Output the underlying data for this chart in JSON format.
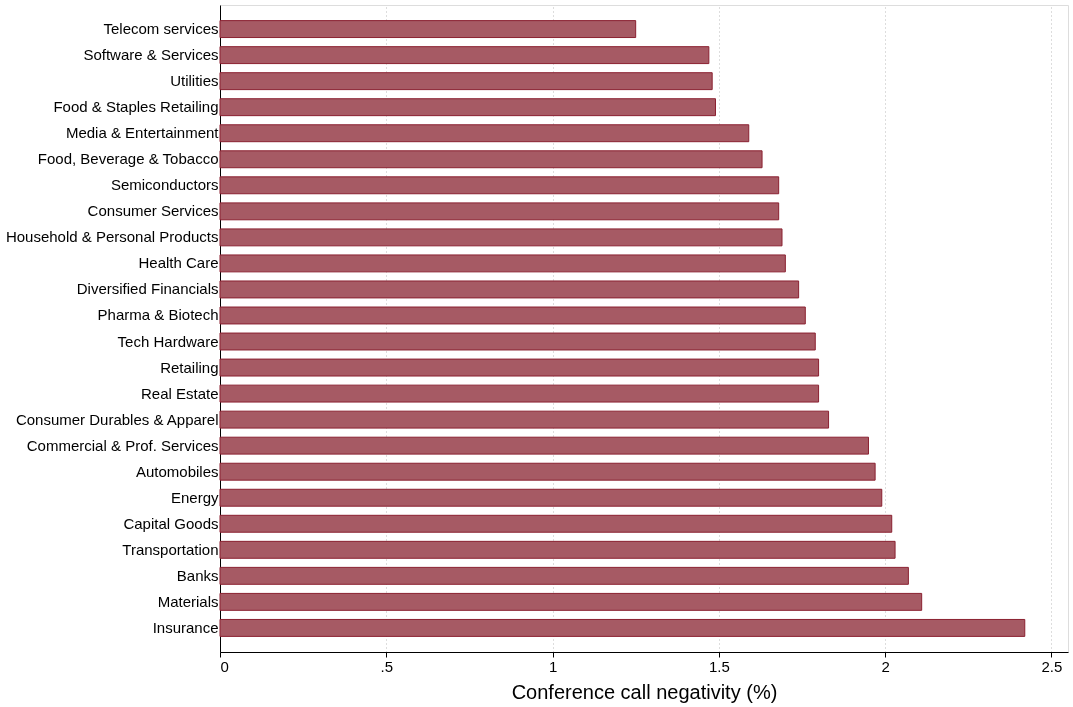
{
  "chart_data": {
    "type": "bar",
    "orientation": "horizontal",
    "xlabel": "Conference call negativity (%)",
    "categories": [
      "Telecom services",
      "Software & Services",
      "Utilities",
      "Food & Staples Retailing",
      "Media & Entertainment",
      "Food, Beverage & Tobacco",
      "Semiconductors",
      "Consumer Services",
      "Household & Personal Products",
      "Health Care",
      "Diversified Financials",
      "Pharma & Biotech",
      "Tech Hardware",
      "Retailing",
      "Real Estate",
      "Consumer Durables & Apparel",
      "Commercial & Prof. Services",
      "Automobiles",
      "Energy",
      "Capital Goods",
      "Transportation",
      "Banks",
      "Materials",
      "Insurance"
    ],
    "values": [
      1.25,
      1.47,
      1.48,
      1.49,
      1.59,
      1.63,
      1.68,
      1.68,
      1.69,
      1.7,
      1.74,
      1.76,
      1.79,
      1.8,
      1.8,
      1.83,
      1.95,
      1.97,
      1.99,
      2.02,
      2.03,
      2.07,
      2.11,
      2.42
    ],
    "color": "#a65a64",
    "xlim": [
      0,
      2.55
    ],
    "xticks": [
      0,
      {
        "value": 0.5,
        "label": ".5"
      },
      1,
      1.5,
      2,
      2.5
    ],
    "grid": "x"
  }
}
